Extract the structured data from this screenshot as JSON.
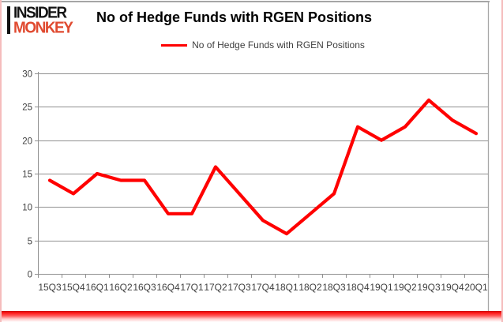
{
  "logo": {
    "line1": "INSIDER",
    "line2": "MONKEY"
  },
  "header": {
    "title": "No of Hedge Funds with RGEN Positions"
  },
  "legend": {
    "label": "No of Hedge Funds with RGEN Positions"
  },
  "colors": {
    "line": "#ff0000",
    "logo_red": "#e04a30",
    "grid": "#909090",
    "frame": "#a6a6a6",
    "axis_text": "#3f3f3f",
    "border_side_pink": "#f5bcbc",
    "border_bottom_red": "#e01010"
  },
  "chart_data": {
    "type": "line",
    "title": "No of Hedge Funds with RGEN Positions",
    "categories": [
      "15Q3",
      "15Q4",
      "16Q1",
      "16Q2",
      "16Q3",
      "16Q4",
      "17Q1",
      "17Q2",
      "17Q3",
      "17Q4",
      "18Q1",
      "18Q2",
      "18Q3",
      "18Q4",
      "19Q1",
      "19Q2",
      "19Q3",
      "19Q4",
      "20Q1"
    ],
    "series": [
      {
        "name": "No of Hedge Funds with RGEN Positions",
        "values": [
          14,
          12,
          15,
          14,
          14,
          9,
          9,
          16,
          12,
          8,
          6,
          9,
          12,
          22,
          20,
          22,
          26,
          23,
          21
        ]
      }
    ],
    "xlabel": "",
    "ylabel": "",
    "ylim": [
      0,
      30
    ],
    "yticks": [
      0,
      5,
      10,
      15,
      20,
      25,
      30
    ],
    "grid": true,
    "legend_position": "top-center"
  }
}
